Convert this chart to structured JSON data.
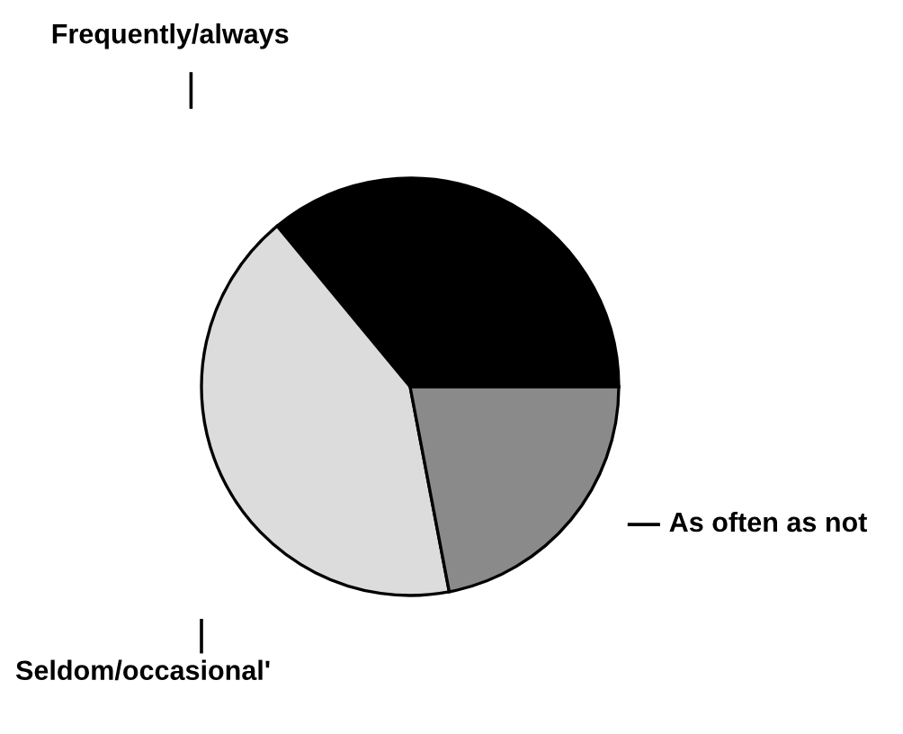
{
  "chart_data": {
    "type": "pie",
    "categories": [
      "Frequently/always",
      "Seldom/occasional'",
      "As often as not"
    ],
    "values": [
      36,
      42,
      22
    ],
    "colors": [
      "#000000",
      "#dcdcdc",
      "#8a8a8a"
    ]
  }
}
